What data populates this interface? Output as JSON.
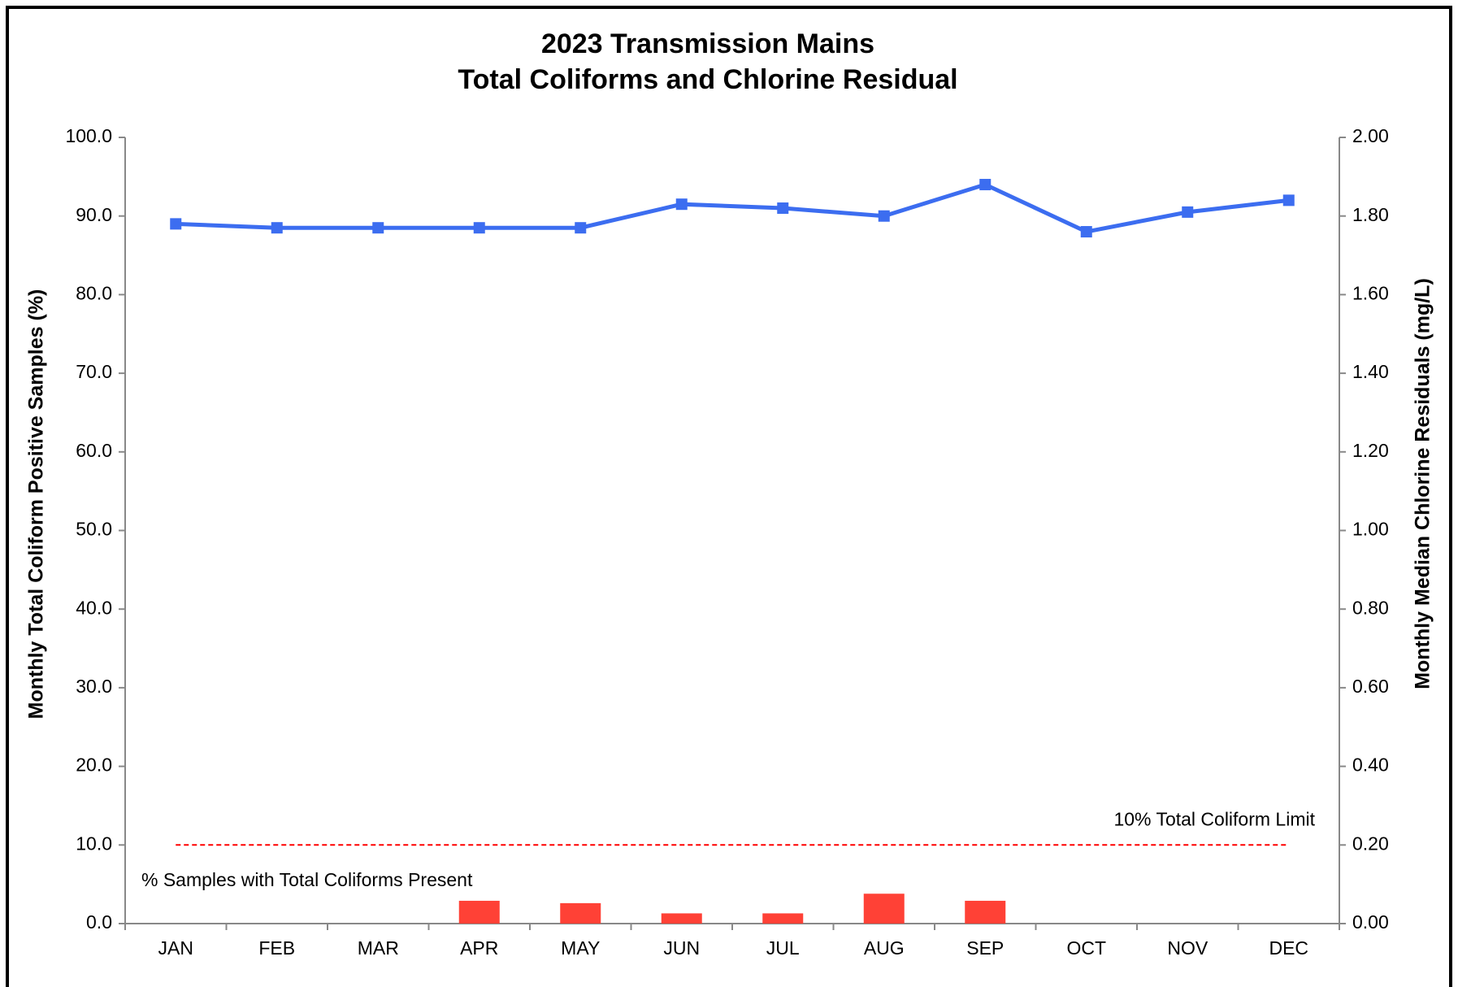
{
  "chart_data": {
    "type": "combo",
    "title": [
      "2023 Transmission Mains",
      "Total Coliforms and Chlorine Residual"
    ],
    "y_label": "Monthly Total Coliform Positive Samples (%)",
    "y2_label": "Monthly Median Chlorine Residuals (mg/L)",
    "categories": [
      "JAN",
      "FEB",
      "MAR",
      "APR",
      "MAY",
      "JUN",
      "JUL",
      "AUG",
      "SEP",
      "OCT",
      "NOV",
      "DEC"
    ],
    "series": [
      {
        "name": "% Samples with Total Coliforms Present",
        "type": "bar",
        "color": "#ff4136",
        "values": [
          0,
          0,
          0,
          2.9,
          2.6,
          1.3,
          1.3,
          3.8,
          2.9,
          0,
          0,
          0
        ]
      },
      {
        "type": "line",
        "axis": "y2",
        "color": "#3c6df0",
        "values": [
          1.78,
          1.77,
          1.77,
          1.77,
          1.77,
          1.83,
          1.82,
          1.8,
          1.88,
          1.76,
          1.81,
          1.84
        ]
      }
    ],
    "reference_line": {
      "value": 10,
      "label": "10% Total Coliform Limit",
      "color": "#ff0000"
    },
    "ylim": [
      0,
      100
    ],
    "yticks": [
      {
        "value": 0,
        "label": "0.0"
      },
      {
        "value": 10,
        "label": "10.0"
      },
      {
        "value": 20,
        "label": "20.0"
      },
      {
        "value": 30,
        "label": "30.0"
      },
      {
        "value": 40,
        "label": "40.0"
      },
      {
        "value": 50,
        "label": "50.0"
      },
      {
        "value": 60,
        "label": "60.0"
      },
      {
        "value": 70,
        "label": "70.0"
      },
      {
        "value": 80,
        "label": "80.0"
      },
      {
        "value": 90,
        "label": "90.0"
      },
      {
        "value": 100,
        "label": "100.0"
      }
    ],
    "y2lim": [
      0,
      2
    ],
    "y2ticks": [
      {
        "value": 0,
        "label": "0.00"
      },
      {
        "value": 0.2,
        "label": "0.20"
      },
      {
        "value": 0.4,
        "label": "0.40"
      },
      {
        "value": 0.6,
        "label": "0.60"
      },
      {
        "value": 0.8,
        "label": "0.80"
      },
      {
        "value": 1.0,
        "label": "1.00"
      },
      {
        "value": 1.2,
        "label": "1.20"
      },
      {
        "value": 1.4,
        "label": "1.40"
      },
      {
        "value": 1.6,
        "label": "1.60"
      },
      {
        "value": 1.8,
        "label": "1.80"
      },
      {
        "value": 2.0,
        "label": "2.00"
      }
    ],
    "grid": false
  }
}
